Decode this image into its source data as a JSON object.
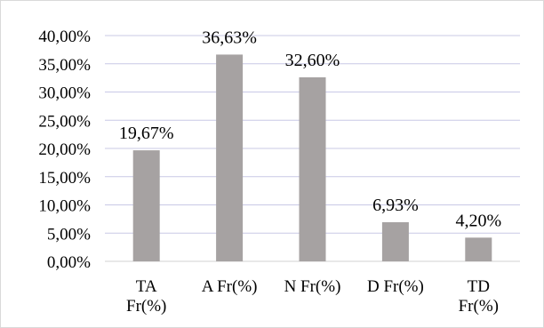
{
  "chart_data": {
    "type": "bar",
    "categories": [
      "TA Fr(%)",
      "A Fr(%)",
      "N Fr(%)",
      "D Fr(%)",
      "TD Fr(%)"
    ],
    "category_lines": [
      [
        "TA",
        "Fr(%)"
      ],
      [
        "A Fr(%)"
      ],
      [
        "N Fr(%)"
      ],
      [
        "D Fr(%)"
      ],
      [
        "TD",
        "Fr(%)"
      ]
    ],
    "values": [
      19.67,
      36.63,
      32.6,
      6.93,
      4.2
    ],
    "data_labels": [
      "19,67%",
      "36,63%",
      "32,60%",
      "6,93%",
      "4,20%"
    ],
    "ylim": [
      0,
      40
    ],
    "yticks": [
      0,
      5,
      10,
      15,
      20,
      25,
      30,
      35,
      40
    ],
    "ytick_labels": [
      "0,00%",
      "5,00%",
      "10,00%",
      "15,00%",
      "20,00%",
      "25,00%",
      "30,00%",
      "35,00%",
      "40,00%"
    ],
    "grid": true,
    "legend": "none",
    "title": "",
    "xlabel": "",
    "ylabel": "",
    "colors": {
      "bar": "#a6a2a2",
      "grid": "#c9c9e6",
      "axis": "#d0d0d0",
      "border": "#d9d9d9"
    }
  }
}
